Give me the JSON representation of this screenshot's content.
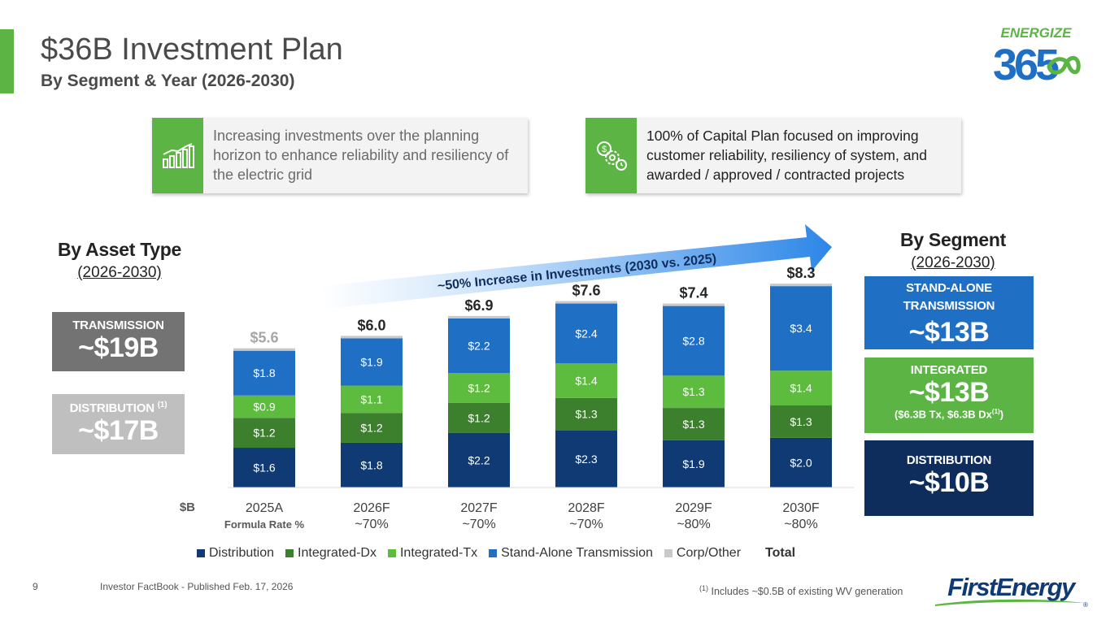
{
  "header": {
    "title": "$36B Investment Plan",
    "subtitle": "By Segment & Year (2026-2030)",
    "brand_logo_text_top": "ENERGIZE",
    "brand_logo_text_bottom": "365"
  },
  "callouts": [
    {
      "icon": "bar-chart-growth-icon",
      "text": "Increasing investments over the planning horizon to enhance reliability and resiliency of the electric grid"
    },
    {
      "icon": "dollar-gear-clock-icon",
      "text": "100% of Capital Plan focused on improving customer reliability, resiliency of system, and awarded / approved / contracted projects"
    }
  ],
  "asset_type": {
    "heading": "By Asset Type",
    "period": "(2026-2030)",
    "transmission_label": "TRANSMISSION",
    "transmission_value": "~$19B",
    "distribution_label": "DISTRIBUTION",
    "distribution_note": "(1)",
    "distribution_value": "~$17B"
  },
  "segment": {
    "heading": "By Segment",
    "period": "(2026-2030)",
    "sat_label_1": "STAND-ALONE",
    "sat_label_2": "TRANSMISSION",
    "sat_value": "~$13B",
    "int_label": "INTEGRATED",
    "int_value": "~$13B",
    "int_note_pre": "($6.3B Tx, $6.3B Dx",
    "int_note_sup": "(1)",
    "int_note_post": ")",
    "dist_label": "DISTRIBUTION",
    "dist_value": "~$10B"
  },
  "chart_data": {
    "type": "bar",
    "stacked": true,
    "unit_label": "$B",
    "categories": [
      "2025A",
      "2026F",
      "2027F",
      "2028F",
      "2029F",
      "2030F"
    ],
    "category_sublabels": [
      "Formula Rate %",
      "~70%",
      "~70%",
      "~70%",
      "~80%",
      "~80%"
    ],
    "series": [
      {
        "name": "Distribution",
        "color": "#0f3a73",
        "values": [
          1.6,
          1.8,
          2.2,
          2.3,
          1.9,
          2.0
        ],
        "labels": [
          "$1.6",
          "$1.8",
          "$2.2",
          "$2.3",
          "$1.9",
          "$2.0"
        ]
      },
      {
        "name": "Integrated-Dx",
        "color": "#3c7f2c",
        "values": [
          1.2,
          1.2,
          1.2,
          1.3,
          1.3,
          1.3
        ],
        "labels": [
          "$1.2",
          "$1.2",
          "$1.2",
          "$1.3",
          "$1.3",
          "$1.3"
        ]
      },
      {
        "name": "Integrated-Tx",
        "color": "#5dbb3d",
        "values": [
          0.9,
          1.1,
          1.2,
          1.4,
          1.3,
          1.4
        ],
        "labels": [
          "$0.9",
          "$1.1",
          "$1.2",
          "$1.4",
          "$1.3",
          "$1.4"
        ]
      },
      {
        "name": "Stand-Alone Transmission",
        "color": "#1f6fc5",
        "values": [
          1.8,
          1.9,
          2.2,
          2.4,
          2.8,
          3.4
        ],
        "labels": [
          "$1.8",
          "$1.9",
          "$2.2",
          "$2.4",
          "$2.8",
          "$3.4"
        ]
      },
      {
        "name": "Corp/Other",
        "color": "#c9c9c9",
        "values": [
          0.1,
          0.1,
          0.1,
          0.1,
          0.1,
          0.1
        ],
        "labels": [
          "",
          "",
          "",
          "",
          "",
          ""
        ]
      }
    ],
    "totals": [
      "$5.6",
      "$6.0",
      "$6.9",
      "$7.6",
      "$7.4",
      "$8.3"
    ],
    "total_values": [
      5.6,
      6.0,
      6.9,
      7.6,
      7.4,
      8.3
    ],
    "total_legend_label": "Total",
    "annotation": "~50% Increase in Investments (2030 vs. 2025)",
    "ylim": [
      0,
      9.0
    ],
    "grid": false,
    "legend_position": "bottom"
  },
  "footer": {
    "page_number": "9",
    "publication": "Investor FactBook - Published Feb. 17, 2026",
    "footnote_sup": "(1)",
    "footnote_text": " Includes ~$0.5B of existing WV generation",
    "company_logo_text": "FirstEnergy"
  }
}
